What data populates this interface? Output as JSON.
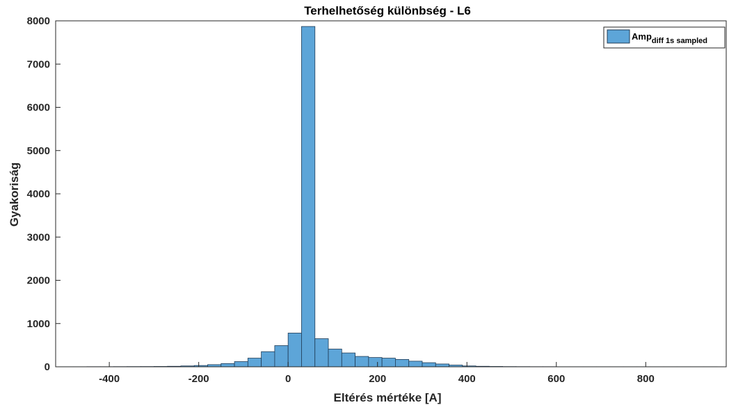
{
  "chart_data": {
    "type": "bar",
    "title": "Terhelhetőség különbség - L6",
    "xlabel": "Eltérés mértéke [A]",
    "ylabel": "Gyakoriság",
    "xlim": [
      -520,
      980
    ],
    "ylim": [
      0,
      8000
    ],
    "xticks": [
      -400,
      -200,
      0,
      200,
      400,
      600,
      800
    ],
    "yticks": [
      0,
      1000,
      2000,
      3000,
      4000,
      5000,
      6000,
      7000,
      8000
    ],
    "bin_width": 30,
    "bin_edges_start": -510,
    "bin_edges_end": 960,
    "legend": {
      "base": "Amp",
      "subscript": "diff 1s sampled",
      "location": "top-right"
    },
    "bar_color": "#5DA5D8",
    "edge_color": "#1F3B56",
    "series": [
      {
        "values": [
          2,
          2,
          3,
          3,
          4,
          5,
          6,
          8,
          12,
          20,
          30,
          50,
          75,
          120,
          200,
          350,
          490,
          780,
          7870,
          650,
          410,
          320,
          240,
          215,
          200,
          170,
          130,
          95,
          65,
          40,
          20,
          12,
          8,
          5,
          4,
          3,
          3,
          2,
          2,
          2,
          2,
          2,
          2,
          2,
          2,
          2,
          2,
          2,
          2
        ]
      }
    ]
  }
}
